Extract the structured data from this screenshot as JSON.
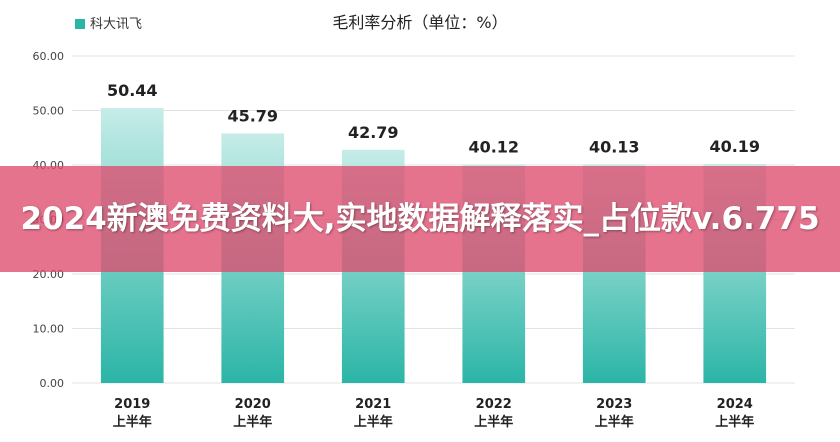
{
  "chart_data": {
    "type": "bar",
    "title": "毛利率分析（单位：%）",
    "legend": {
      "label": "科大讯飞",
      "position": "top-left",
      "color": "#2bb5a7"
    },
    "categories": [
      {
        "year": "2019",
        "half": "上半年"
      },
      {
        "year": "2020",
        "half": "上半年"
      },
      {
        "year": "2021",
        "half": "上半年"
      },
      {
        "year": "2022",
        "half": "上半年"
      },
      {
        "year": "2023",
        "half": "上半年"
      },
      {
        "year": "2024",
        "half": "上半年"
      }
    ],
    "series": [
      {
        "name": "科大讯飞",
        "values": [
          50.44,
          45.79,
          42.79,
          40.12,
          40.13,
          40.19
        ]
      }
    ],
    "data_labels": [
      "50.44",
      "45.79",
      "42.79",
      "40.12",
      "40.13",
      "40.19"
    ],
    "ylim": [
      0,
      60
    ],
    "yticks": [
      "0.00",
      "10.00",
      "20.00",
      "30.00",
      "40.00",
      "50.00",
      "60.00"
    ],
    "grid": true,
    "colors": {
      "bar_bottom": "#2bb5a7",
      "bar_top": "#c6ece8"
    }
  },
  "overlay": {
    "text": "2024新澳免费资料大,实地数据解释落实_占位款v.6.775"
  }
}
